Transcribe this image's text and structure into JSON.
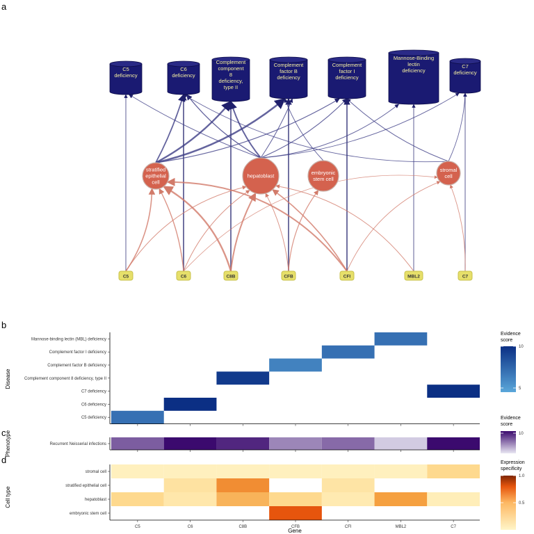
{
  "panels": {
    "a": "a",
    "b": "b",
    "c": "c",
    "d": "d"
  },
  "network": {
    "diseases": [
      {
        "id": "c5def",
        "lines": [
          "C5",
          "deficiency"
        ]
      },
      {
        "id": "c6def",
        "lines": [
          "C6",
          "deficiency"
        ]
      },
      {
        "id": "c8def",
        "lines": [
          "Complement",
          "component",
          "8",
          "deficiency,",
          "type II"
        ]
      },
      {
        "id": "cfbdef",
        "lines": [
          "Complement",
          "factor B",
          "deficiency"
        ]
      },
      {
        "id": "cfidef",
        "lines": [
          "Complement",
          "factor I",
          "deficiency"
        ]
      },
      {
        "id": "mbldef",
        "lines": [
          "Mannose-Binding",
          "lectin",
          "deficiency"
        ]
      },
      {
        "id": "c7def",
        "lines": [
          "C7",
          "deficiency"
        ]
      }
    ],
    "cells": [
      {
        "id": "strat",
        "lines": [
          "stratified",
          "epithelial",
          "cell"
        ]
      },
      {
        "id": "hep",
        "lines": [
          "hepatoblast"
        ]
      },
      {
        "id": "emb",
        "lines": [
          "embryonic",
          "stem cell"
        ]
      },
      {
        "id": "strom",
        "lines": [
          "stromal",
          "cell"
        ]
      }
    ],
    "genes": [
      "C5",
      "C6",
      "C8B",
      "CFB",
      "CFI",
      "MBL2",
      "C7"
    ]
  },
  "heatmap": {
    "genes": [
      "C5",
      "C6",
      "C8B",
      "CFB",
      "CFI",
      "MBL2",
      "C7"
    ],
    "xlabel": "Gene",
    "disease_ylabel": "Disease",
    "phenotype_ylabel": "Phenotype",
    "celltype_ylabel": "Cell type",
    "diseases": [
      "Mannose-binding lectin (MBL) deficiency",
      "Complement factor I deficiency",
      "Complement factor B deficiency",
      "Complement component 8 deficiency, type II",
      "C7 deficiency",
      "C6 deficiency",
      "C5 deficiency"
    ],
    "phenotypes": [
      "Recurrent Neisserial infections"
    ],
    "celltypes": [
      "stromal cell",
      "stratified epithelial cell",
      "hepatoblast",
      "embryonic stem cell"
    ]
  },
  "chart_data": [
    {
      "type": "heatmap",
      "x": [
        "C5",
        "C6",
        "C8B",
        "CFB",
        "CFI",
        "MBL2",
        "C7"
      ],
      "y": [
        "Mannose-binding lectin (MBL) deficiency",
        "Complement factor I deficiency",
        "Complement factor B deficiency",
        "Complement component 8 deficiency, type II",
        "C7 deficiency",
        "C6 deficiency",
        "C5 deficiency"
      ],
      "cells": [
        {
          "x": "MBL2",
          "y": "Mannose-binding lectin (MBL) deficiency",
          "value": 7
        },
        {
          "x": "CFI",
          "y": "Complement factor I deficiency",
          "value": 7
        },
        {
          "x": "CFB",
          "y": "Complement factor B deficiency",
          "value": 6.2
        },
        {
          "x": "C8B",
          "y": "Complement component 8 deficiency, type II",
          "value": 9.5
        },
        {
          "x": "C7",
          "y": "C7 deficiency",
          "value": 10
        },
        {
          "x": "C6",
          "y": "C6 deficiency",
          "value": 10
        },
        {
          "x": "C5",
          "y": "C5 deficiency",
          "value": 7
        }
      ],
      "ylabel": "Disease",
      "legend": {
        "title": "Evidence score",
        "ticks": [
          10,
          5
        ],
        "range": [
          4.5,
          10
        ],
        "colors": [
          "#5aa7da",
          "#0b2f84"
        ]
      }
    },
    {
      "type": "heatmap",
      "x": [
        "C5",
        "C6",
        "C8B",
        "CFB",
        "CFI",
        "MBL2",
        "C7"
      ],
      "y": [
        "Recurrent Neisserial infections"
      ],
      "cells": [
        {
          "x": "C5",
          "y": "Recurrent Neisserial infections",
          "value": 7
        },
        {
          "x": "C6",
          "y": "Recurrent Neisserial infections",
          "value": 10
        },
        {
          "x": "C8B",
          "y": "Recurrent Neisserial infections",
          "value": 9
        },
        {
          "x": "CFB",
          "y": "Recurrent Neisserial infections",
          "value": 5.5
        },
        {
          "x": "CFI",
          "y": "Recurrent Neisserial infections",
          "value": 6.5
        },
        {
          "x": "MBL2",
          "y": "Recurrent Neisserial infections",
          "value": 3
        },
        {
          "x": "C7",
          "y": "Recurrent Neisserial infections",
          "value": 10
        }
      ],
      "ylabel": "Phenotype",
      "legend": {
        "title": "Evidence score",
        "ticks": [
          10
        ],
        "range": [
          2,
          10
        ],
        "colors": [
          "#e8e6f2",
          "#3b0a6e"
        ]
      }
    },
    {
      "type": "heatmap",
      "x": [
        "C5",
        "C6",
        "C8B",
        "CFB",
        "CFI",
        "MBL2",
        "C7"
      ],
      "y": [
        "stromal cell",
        "stratified epithelial cell",
        "hepatoblast",
        "embryonic stem cell"
      ],
      "cells": [
        {
          "x": "C5",
          "y": "stromal cell",
          "value": 0.05
        },
        {
          "x": "C6",
          "y": "stromal cell",
          "value": 0.05
        },
        {
          "x": "C8B",
          "y": "stromal cell",
          "value": 0.05
        },
        {
          "x": "CFB",
          "y": "stromal cell",
          "value": 0.05
        },
        {
          "x": "CFI",
          "y": "stromal cell",
          "value": 0.05
        },
        {
          "x": "MBL2",
          "y": "stromal cell",
          "value": 0.05
        },
        {
          "x": "C7",
          "y": "stromal cell",
          "value": 0.3
        },
        {
          "x": "C6",
          "y": "stratified epithelial cell",
          "value": 0.2
        },
        {
          "x": "C8B",
          "y": "stratified epithelial cell",
          "value": 0.65
        },
        {
          "x": "CFI",
          "y": "stratified epithelial cell",
          "value": 0.18
        },
        {
          "x": "C5",
          "y": "hepatoblast",
          "value": 0.3
        },
        {
          "x": "C6",
          "y": "hepatoblast",
          "value": 0.15
        },
        {
          "x": "C8B",
          "y": "hepatoblast",
          "value": 0.5
        },
        {
          "x": "CFB",
          "y": "hepatoblast",
          "value": 0.3
        },
        {
          "x": "CFI",
          "y": "hepatoblast",
          "value": 0.12
        },
        {
          "x": "MBL2",
          "y": "hepatoblast",
          "value": 0.6
        },
        {
          "x": "C7",
          "y": "hepatoblast",
          "value": 0.08
        },
        {
          "x": "CFB",
          "y": "embryonic stem cell",
          "value": 0.8
        }
      ],
      "xlabel": "Gene",
      "ylabel": "Cell type",
      "legend": {
        "title": "Expression specificity",
        "ticks": [
          1.0,
          0.5
        ],
        "tick_labels": [
          "1.0",
          "0.5"
        ],
        "range": [
          0,
          1
        ],
        "colors": [
          "#fff5c8",
          "#7f2704"
        ]
      }
    }
  ]
}
